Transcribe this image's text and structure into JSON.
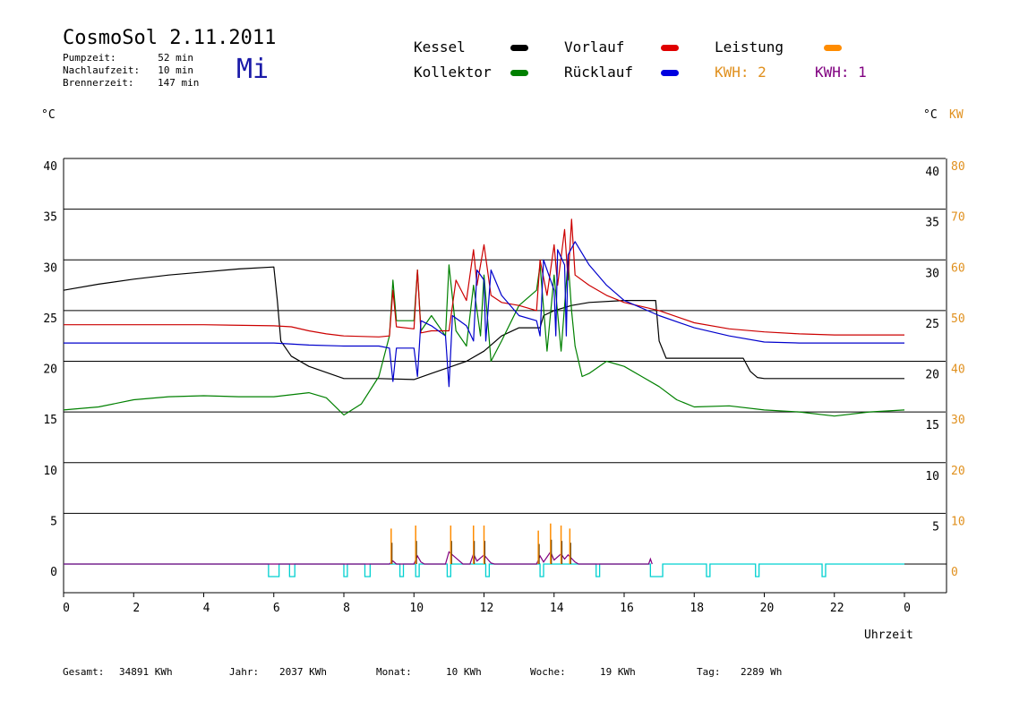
{
  "title": "CosmoSol 2.11.2011",
  "weekday": "Mi",
  "info": [
    {
      "label": "Pumpzeit:",
      "value": "52 min"
    },
    {
      "label": "Nachlaufzeit:",
      "value": "10 min"
    },
    {
      "label": "Brennerzeit:",
      "value": "147 min"
    }
  ],
  "legend": {
    "kessel": "Kessel",
    "kollektor": "Kollektor",
    "vorlauf": "Vorlauf",
    "ruecklauf": "Rücklauf",
    "leistung": "Leistung",
    "kwh2": "KWH: 2",
    "kwh1": "KWH: 1"
  },
  "colors": {
    "kessel": "#000000",
    "kollektor": "#008000",
    "vorlauf": "#cc0000",
    "ruecklauf": "#0000cc",
    "leistung": "#ff8c00",
    "kwh2": "#e0901e",
    "kwh1": "#800080",
    "pump": "#00d0d0"
  },
  "axes": {
    "left_unit": "°C",
    "right_unit": "°C",
    "right_kw_unit": "KW",
    "x_label": "Uhrzeit"
  },
  "footer": {
    "gesamt_label": "Gesamt:",
    "gesamt_value": "34891 KWh",
    "jahr_label": "Jahr:",
    "jahr_value": "2037 KWh",
    "monat_label": "Monat:",
    "monat_value": "10 KWh",
    "woche_label": "Woche:",
    "woche_value": "19 KWh",
    "tag_label": "Tag:",
    "tag_value": "2289 Wh"
  },
  "chart_data": {
    "type": "line",
    "x_ticks": [
      "0",
      "2",
      "4",
      "6",
      "8",
      "10",
      "12",
      "14",
      "16",
      "18",
      "20",
      "22",
      "0"
    ],
    "x_range": [
      0,
      24
    ],
    "y_left_ticks": [
      0,
      5,
      10,
      15,
      20,
      25,
      30,
      35,
      40
    ],
    "y_right_ticks": [
      5,
      10,
      15,
      20,
      25,
      30,
      35,
      40
    ],
    "y_kw_ticks": [
      0,
      10,
      20,
      30,
      40,
      50,
      60,
      70,
      80
    ],
    "ylim": [
      0,
      40
    ],
    "series": [
      {
        "name": "Kessel",
        "color_key": "kessel",
        "points": [
          [
            0,
            27.0
          ],
          [
            1,
            27.6
          ],
          [
            2,
            28.1
          ],
          [
            3,
            28.5
          ],
          [
            4,
            28.8
          ],
          [
            5,
            29.1
          ],
          [
            6,
            29.3
          ],
          [
            6.1,
            26.0
          ],
          [
            6.2,
            22.0
          ],
          [
            6.5,
            20.5
          ],
          [
            7,
            19.5
          ],
          [
            8,
            18.3
          ],
          [
            9,
            18.3
          ],
          [
            10,
            18.2
          ],
          [
            10.5,
            18.8
          ],
          [
            11,
            19.4
          ],
          [
            11.5,
            20.0
          ],
          [
            12,
            21.0
          ],
          [
            12.5,
            22.5
          ],
          [
            13,
            23.3
          ],
          [
            13.6,
            23.3
          ],
          [
            13.7,
            24.5
          ],
          [
            14,
            25.0
          ],
          [
            14.5,
            25.5
          ],
          [
            15,
            25.8
          ],
          [
            16,
            26.0
          ],
          [
            16.9,
            26.0
          ],
          [
            17,
            22.0
          ],
          [
            17.2,
            20.3
          ],
          [
            17.3,
            20.3
          ],
          [
            19.4,
            20.3
          ],
          [
            19.6,
            19.0
          ],
          [
            19.8,
            18.4
          ],
          [
            20,
            18.3
          ],
          [
            24,
            18.3
          ]
        ]
      },
      {
        "name": "Kollektor",
        "color_key": "kollektor",
        "points": [
          [
            0,
            15.2
          ],
          [
            1,
            15.5
          ],
          [
            2,
            16.2
          ],
          [
            3,
            16.5
          ],
          [
            4,
            16.6
          ],
          [
            5,
            16.5
          ],
          [
            6,
            16.5
          ],
          [
            7,
            16.9
          ],
          [
            7.5,
            16.4
          ],
          [
            8,
            14.7
          ],
          [
            8.5,
            15.8
          ],
          [
            9,
            18.5
          ],
          [
            9.3,
            22.5
          ],
          [
            9.4,
            28.0
          ],
          [
            9.5,
            24.0
          ],
          [
            10,
            24.0
          ],
          [
            10.1,
            29.0
          ],
          [
            10.2,
            23.0
          ],
          [
            10.5,
            24.5
          ],
          [
            10.9,
            22.5
          ],
          [
            11,
            29.5
          ],
          [
            11.2,
            23.0
          ],
          [
            11.5,
            21.5
          ],
          [
            11.7,
            27.5
          ],
          [
            11.9,
            22.5
          ],
          [
            12,
            28.5
          ],
          [
            12.2,
            20.0
          ],
          [
            12.5,
            22.0
          ],
          [
            13,
            25.5
          ],
          [
            13.5,
            27.0
          ],
          [
            13.6,
            29.5
          ],
          [
            13.8,
            21.0
          ],
          [
            14,
            28.5
          ],
          [
            14.2,
            21.0
          ],
          [
            14.4,
            30.0
          ],
          [
            14.5,
            25.0
          ],
          [
            14.6,
            21.5
          ],
          [
            14.8,
            18.5
          ],
          [
            15,
            18.8
          ],
          [
            15.5,
            20.0
          ],
          [
            16,
            19.5
          ],
          [
            16.5,
            18.5
          ],
          [
            17,
            17.5
          ],
          [
            17.5,
            16.2
          ],
          [
            18,
            15.5
          ],
          [
            19,
            15.6
          ],
          [
            20,
            15.2
          ],
          [
            21,
            15.0
          ],
          [
            22,
            14.6
          ],
          [
            23,
            15.0
          ],
          [
            24,
            15.2
          ]
        ]
      },
      {
        "name": "Vorlauf",
        "color_key": "vorlauf",
        "points": [
          [
            0,
            23.6
          ],
          [
            2,
            23.6
          ],
          [
            4,
            23.6
          ],
          [
            6,
            23.5
          ],
          [
            6.5,
            23.4
          ],
          [
            7,
            23.0
          ],
          [
            7.5,
            22.7
          ],
          [
            8,
            22.5
          ],
          [
            9,
            22.4
          ],
          [
            9.3,
            22.5
          ],
          [
            9.4,
            27.0
          ],
          [
            9.5,
            23.4
          ],
          [
            10,
            23.2
          ],
          [
            10.1,
            29.0
          ],
          [
            10.2,
            22.8
          ],
          [
            10.5,
            23.0
          ],
          [
            11,
            23.0
          ],
          [
            11.2,
            28.0
          ],
          [
            11.5,
            26.0
          ],
          [
            11.7,
            31.0
          ],
          [
            11.8,
            27.5
          ],
          [
            12,
            31.5
          ],
          [
            12.2,
            26.5
          ],
          [
            12.5,
            25.8
          ],
          [
            13,
            25.5
          ],
          [
            13.5,
            25.0
          ],
          [
            13.6,
            30.0
          ],
          [
            13.8,
            26.5
          ],
          [
            14,
            31.5
          ],
          [
            14.1,
            27.5
          ],
          [
            14.3,
            33.0
          ],
          [
            14.4,
            28.0
          ],
          [
            14.5,
            34.0
          ],
          [
            14.6,
            28.5
          ],
          [
            15,
            27.5
          ],
          [
            15.5,
            26.5
          ],
          [
            16,
            25.8
          ],
          [
            16.5,
            25.4
          ],
          [
            17,
            25.0
          ],
          [
            18,
            23.8
          ],
          [
            19,
            23.2
          ],
          [
            20,
            22.9
          ],
          [
            21,
            22.7
          ],
          [
            22,
            22.6
          ],
          [
            24,
            22.6
          ]
        ]
      },
      {
        "name": "Rücklauf",
        "color_key": "ruecklauf",
        "points": [
          [
            0,
            21.8
          ],
          [
            2,
            21.8
          ],
          [
            4,
            21.8
          ],
          [
            6,
            21.8
          ],
          [
            7,
            21.6
          ],
          [
            8,
            21.5
          ],
          [
            9,
            21.5
          ],
          [
            9.3,
            21.3
          ],
          [
            9.4,
            18.0
          ],
          [
            9.5,
            21.3
          ],
          [
            10,
            21.3
          ],
          [
            10.1,
            18.5
          ],
          [
            10.2,
            24.0
          ],
          [
            10.5,
            23.5
          ],
          [
            10.9,
            22.5
          ],
          [
            11,
            17.5
          ],
          [
            11.1,
            24.5
          ],
          [
            11.5,
            23.5
          ],
          [
            11.7,
            22.0
          ],
          [
            11.8,
            29.0
          ],
          [
            12,
            28.0
          ],
          [
            12.05,
            22.0
          ],
          [
            12.2,
            29.0
          ],
          [
            12.5,
            26.5
          ],
          [
            13,
            24.5
          ],
          [
            13.5,
            24.0
          ],
          [
            13.6,
            22.5
          ],
          [
            13.7,
            30.0
          ],
          [
            14,
            27.0
          ],
          [
            14.05,
            22.5
          ],
          [
            14.1,
            31.0
          ],
          [
            14.3,
            29.5
          ],
          [
            14.35,
            22.5
          ],
          [
            14.4,
            30.5
          ],
          [
            14.6,
            31.8
          ],
          [
            15,
            29.5
          ],
          [
            15.5,
            27.5
          ],
          [
            16,
            26.0
          ],
          [
            17,
            24.5
          ],
          [
            18,
            23.3
          ],
          [
            19,
            22.5
          ],
          [
            20,
            21.9
          ],
          [
            21,
            21.8
          ],
          [
            22,
            21.8
          ],
          [
            24,
            21.8
          ]
        ]
      }
    ],
    "leistung_spikes": [
      [
        9.35,
        3.5
      ],
      [
        10.05,
        3.8
      ],
      [
        11.05,
        3.8
      ],
      [
        11.7,
        3.8
      ],
      [
        12.0,
        3.8
      ],
      [
        13.55,
        3.3
      ],
      [
        13.9,
        4.0
      ],
      [
        14.2,
        3.8
      ],
      [
        14.45,
        3.5
      ]
    ],
    "kwh_traces": [
      [
        9.3,
        0
      ],
      [
        9.4,
        0.3
      ],
      [
        9.5,
        0
      ],
      [
        10.0,
        0
      ],
      [
        10.1,
        0.8
      ],
      [
        10.2,
        0.2
      ],
      [
        10.3,
        0
      ],
      [
        10.9,
        0
      ],
      [
        11.0,
        1.2
      ],
      [
        11.2,
        0.6
      ],
      [
        11.4,
        0
      ],
      [
        11.6,
        0
      ],
      [
        11.7,
        1.0
      ],
      [
        11.8,
        0.3
      ],
      [
        12.0,
        0.9
      ],
      [
        12.2,
        0.1
      ],
      [
        12.3,
        0
      ],
      [
        13.5,
        0
      ],
      [
        13.6,
        0.8
      ],
      [
        13.7,
        0.2
      ],
      [
        13.9,
        1.2
      ],
      [
        14.0,
        0.4
      ],
      [
        14.2,
        1.0
      ],
      [
        14.3,
        0.5
      ],
      [
        14.4,
        0.9
      ],
      [
        14.6,
        0.2
      ],
      [
        14.7,
        0
      ],
      [
        16.7,
        0
      ],
      [
        16.75,
        0.5
      ],
      [
        16.8,
        0
      ]
    ],
    "pump_pulses": [
      [
        5.85,
        6.15
      ],
      [
        6.45,
        6.6
      ],
      [
        8.0,
        8.1
      ],
      [
        8.6,
        8.75
      ],
      [
        9.6,
        9.7
      ],
      [
        10.05,
        10.15
      ],
      [
        10.95,
        11.05
      ],
      [
        12.05,
        12.15
      ],
      [
        13.6,
        13.7
      ],
      [
        15.2,
        15.3
      ],
      [
        16.75,
        17.1
      ],
      [
        18.35,
        18.45
      ],
      [
        19.75,
        19.85
      ],
      [
        21.65,
        21.75
      ]
    ]
  }
}
